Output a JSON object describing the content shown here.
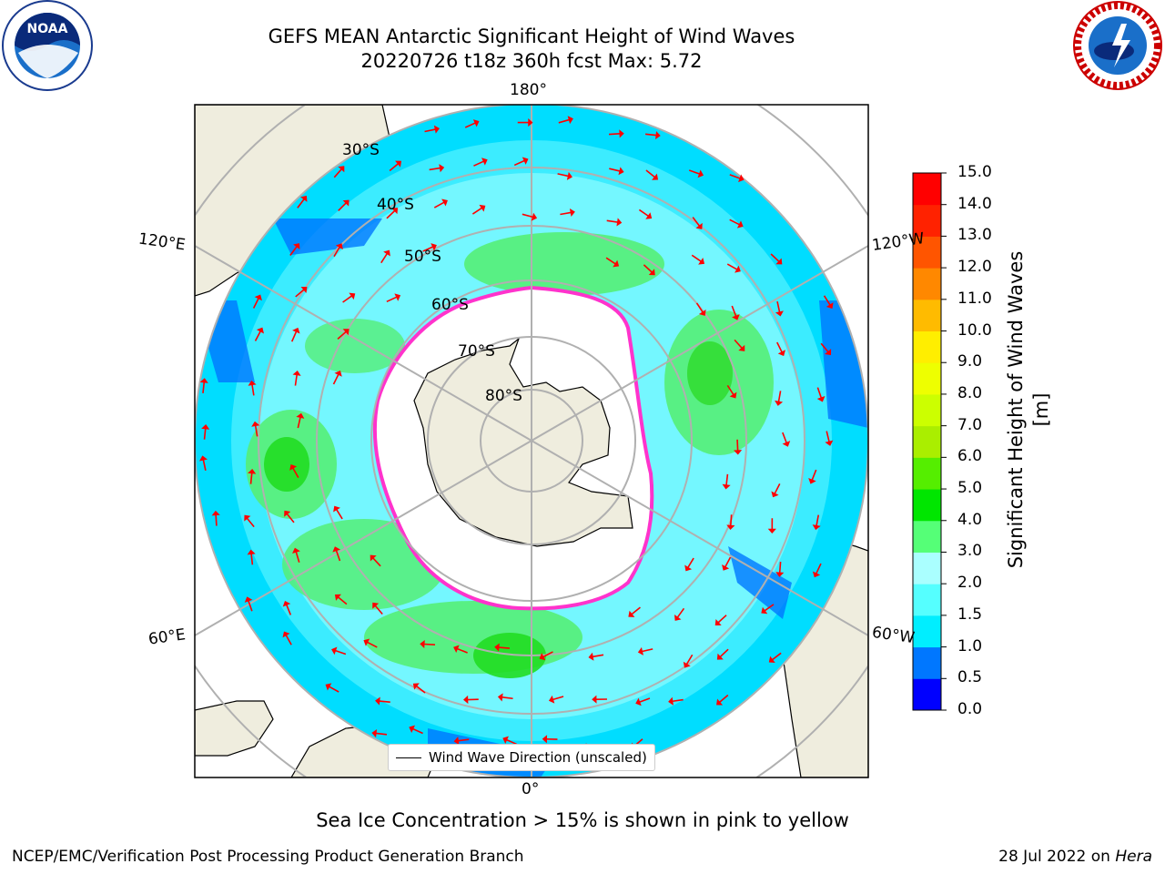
{
  "title": {
    "line1": "GEFS MEAN Antarctic Significant Height of Wind Waves",
    "line2": "20220726 t18z 360h fcst   Max: 5.72"
  },
  "logos": {
    "left": "NOAA",
    "right": "NATIONAL WEATHER SERVICE",
    "left_icon": "noaa-logo",
    "right_icon": "nws-logo"
  },
  "map": {
    "projection": "south-polar-stereographic",
    "lon_labels": {
      "top": "180°",
      "left_upper": "120°E",
      "right_upper": "120°W",
      "left_lower": "60°E",
      "right_lower": "60°W",
      "bottom": "0°"
    },
    "lat_labels": [
      "30°S",
      "40°S",
      "50°S",
      "60°S",
      "70°S",
      "80°S"
    ],
    "colors": {
      "land": "#efedde",
      "sea_ice_edge": "#ff33cc",
      "arrows": "#ff0000",
      "grid": "#b0b0b0"
    }
  },
  "legend": {
    "label": "Wind Wave Direction (unscaled)"
  },
  "colorbar": {
    "label": "Significant Height of Wind Waves [m]",
    "ticks": [
      "0.0",
      "0.5",
      "1.0",
      "1.5",
      "2.0",
      "3.0",
      "4.0",
      "5.0",
      "6.0",
      "7.0",
      "8.0",
      "9.0",
      "10.0",
      "11.0",
      "12.0",
      "13.0",
      "14.0",
      "15.0"
    ],
    "colors": [
      "#0000ff",
      "#0077ff",
      "#00eeff",
      "#55ffff",
      "#aaffff",
      "#55ff77",
      "#00e600",
      "#55ee00",
      "#aaee00",
      "#ccff00",
      "#eeff00",
      "#ffee00",
      "#ffbb00",
      "#ff8800",
      "#ff5500",
      "#ff2200",
      "#ff0000"
    ]
  },
  "note": "Sea Ice Concentration > 15% is shown in pink to yellow",
  "footer": {
    "left": "NCEP/EMC/Verification Post Processing Product Generation Branch",
    "date": "28 Jul 2022 on",
    "system": "Hera"
  }
}
